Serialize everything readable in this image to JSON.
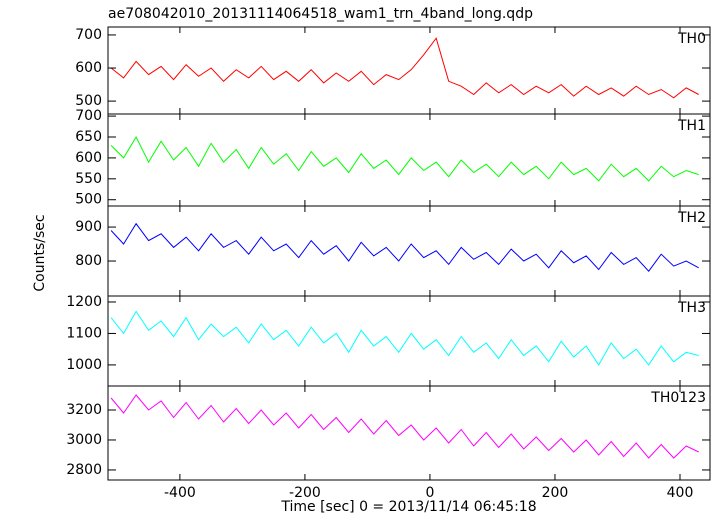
{
  "chart_data": [
    {
      "type": "line",
      "title": "ae708042010_20131114064518_wam1_trn_4band_long.qdp",
      "x": [
        -510,
        -490,
        -470,
        -450,
        -430,
        -410,
        -390,
        -370,
        -350,
        -330,
        -310,
        -290,
        -270,
        -250,
        -230,
        -210,
        -190,
        -170,
        -150,
        -130,
        -110,
        -90,
        -70,
        -50,
        -30,
        -10,
        10,
        30,
        50,
        70,
        90,
        110,
        130,
        150,
        170,
        190,
        210,
        230,
        250,
        270,
        290,
        310,
        330,
        350,
        370,
        390,
        410,
        430
      ],
      "xlim": [
        -515,
        448
      ],
      "ylim": [
        461,
        724
      ],
      "yticks": [
        500,
        600,
        700
      ],
      "series": [
        {
          "name": "TH0",
          "color": "#ff0000",
          "values": [
            600,
            570,
            620,
            580,
            605,
            565,
            610,
            575,
            600,
            560,
            595,
            570,
            605,
            565,
            590,
            560,
            595,
            555,
            585,
            560,
            590,
            550,
            580,
            565,
            595,
            640,
            690,
            560,
            545,
            520,
            555,
            525,
            550,
            520,
            545,
            525,
            550,
            515,
            545,
            520,
            540,
            515,
            545,
            520,
            535,
            510,
            540,
            520
          ]
        }
      ]
    },
    {
      "type": "line",
      "x": [
        -510,
        -490,
        -470,
        -450,
        -430,
        -410,
        -390,
        -370,
        -350,
        -330,
        -310,
        -290,
        -270,
        -250,
        -230,
        -210,
        -190,
        -170,
        -150,
        -130,
        -110,
        -90,
        -70,
        -50,
        -30,
        -10,
        10,
        30,
        50,
        70,
        90,
        110,
        130,
        150,
        170,
        190,
        210,
        230,
        250,
        270,
        290,
        310,
        330,
        350,
        370,
        390,
        410,
        430
      ],
      "xlim": [
        -515,
        448
      ],
      "ylim": [
        485,
        705
      ],
      "yticks": [
        500,
        550,
        600,
        650,
        700
      ],
      "series": [
        {
          "name": "TH1",
          "color": "#00ff00",
          "values": [
            630,
            600,
            650,
            590,
            640,
            595,
            625,
            580,
            635,
            590,
            620,
            575,
            625,
            585,
            610,
            570,
            615,
            580,
            600,
            565,
            610,
            575,
            595,
            560,
            600,
            570,
            590,
            555,
            595,
            565,
            585,
            555,
            590,
            560,
            580,
            550,
            590,
            560,
            575,
            545,
            585,
            555,
            575,
            545,
            580,
            555,
            570,
            560
          ]
        }
      ]
    },
    {
      "type": "line",
      "ylabel": "Counts/sec",
      "x": [
        -510,
        -490,
        -470,
        -450,
        -430,
        -410,
        -390,
        -370,
        -350,
        -330,
        -310,
        -290,
        -270,
        -250,
        -230,
        -210,
        -190,
        -170,
        -150,
        -130,
        -110,
        -90,
        -70,
        -50,
        -30,
        -10,
        10,
        30,
        50,
        70,
        90,
        110,
        130,
        150,
        170,
        190,
        210,
        230,
        250,
        270,
        290,
        310,
        330,
        350,
        370,
        390,
        410,
        430
      ],
      "xlim": [
        -515,
        448
      ],
      "ylim": [
        697,
        962
      ],
      "yticks": [
        800,
        900
      ],
      "series": [
        {
          "name": "TH2",
          "color": "#0000ff",
          "values": [
            890,
            850,
            910,
            860,
            880,
            840,
            870,
            830,
            880,
            840,
            860,
            820,
            870,
            830,
            850,
            810,
            860,
            820,
            845,
            800,
            855,
            815,
            840,
            800,
            850,
            810,
            830,
            790,
            840,
            805,
            825,
            790,
            835,
            800,
            820,
            780,
            830,
            795,
            815,
            775,
            825,
            790,
            810,
            770,
            820,
            785,
            800,
            780
          ]
        }
      ]
    },
    {
      "type": "line",
      "x": [
        -510,
        -490,
        -470,
        -450,
        -430,
        -410,
        -390,
        -370,
        -350,
        -330,
        -310,
        -290,
        -270,
        -250,
        -230,
        -210,
        -190,
        -170,
        -150,
        -130,
        -110,
        -90,
        -70,
        -50,
        -30,
        -10,
        10,
        30,
        50,
        70,
        90,
        110,
        130,
        150,
        170,
        190,
        210,
        230,
        250,
        270,
        290,
        310,
        330,
        350,
        370,
        390,
        410,
        430
      ],
      "xlim": [
        -515,
        448
      ],
      "ylim": [
        933,
        1219
      ],
      "yticks": [
        1000,
        1100,
        1200
      ],
      "series": [
        {
          "name": "TH3",
          "color": "#00ffff",
          "values": [
            1150,
            1100,
            1170,
            1110,
            1140,
            1090,
            1150,
            1080,
            1130,
            1090,
            1120,
            1070,
            1130,
            1080,
            1110,
            1060,
            1120,
            1070,
            1100,
            1040,
            1110,
            1060,
            1090,
            1040,
            1100,
            1050,
            1080,
            1030,
            1090,
            1040,
            1070,
            1020,
            1080,
            1030,
            1060,
            1010,
            1075,
            1025,
            1060,
            1000,
            1070,
            1020,
            1050,
            1000,
            1060,
            1010,
            1040,
            1030
          ]
        }
      ]
    },
    {
      "type": "line",
      "xlabel": "Time [sec] 0 = 2013/11/14 06:45:18",
      "x": [
        -510,
        -490,
        -470,
        -450,
        -430,
        -410,
        -390,
        -370,
        -350,
        -330,
        -310,
        -290,
        -270,
        -250,
        -230,
        -210,
        -190,
        -170,
        -150,
        -130,
        -110,
        -90,
        -70,
        -50,
        -30,
        -10,
        10,
        30,
        50,
        70,
        90,
        110,
        130,
        150,
        170,
        190,
        210,
        230,
        250,
        270,
        290,
        310,
        330,
        350,
        370,
        390,
        410,
        430
      ],
      "xlim": [
        -515,
        448
      ],
      "xticks": [
        -400,
        -200,
        0,
        200,
        400
      ],
      "ylim": [
        2733,
        3360
      ],
      "yticks": [
        2800,
        3000,
        3200
      ],
      "series": [
        {
          "name": "TH0123",
          "color": "#ff00ff",
          "values": [
            3280,
            3180,
            3300,
            3200,
            3260,
            3150,
            3250,
            3140,
            3230,
            3120,
            3210,
            3110,
            3200,
            3100,
            3180,
            3080,
            3170,
            3070,
            3150,
            3050,
            3140,
            3040,
            3130,
            3030,
            3100,
            3000,
            3080,
            2980,
            3070,
            2960,
            3050,
            2950,
            3040,
            2940,
            3020,
            2930,
            3010,
            2920,
            3000,
            2900,
            2990,
            2890,
            2980,
            2880,
            2970,
            2880,
            2960,
            2920
          ]
        }
      ]
    }
  ]
}
